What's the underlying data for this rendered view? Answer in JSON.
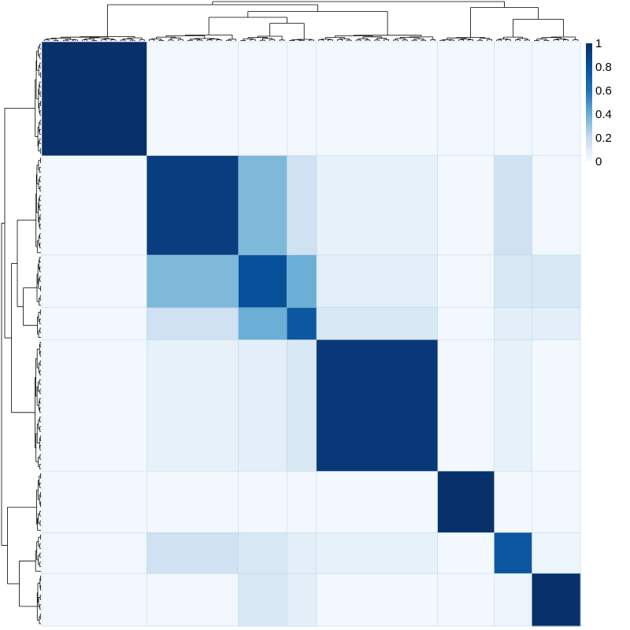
{
  "chart_data": {
    "type": "heatmap",
    "title": "",
    "xlabel": "",
    "ylabel": "",
    "description_of_values": "symmetric co-clustering / consensus matrix, values 0-1",
    "colorbar": {
      "min": 0,
      "max": 1,
      "ticks": [
        0,
        0.2,
        0.4,
        0.6,
        0.8,
        1
      ],
      "tick_labels": [
        "0",
        "0.2",
        "0.4",
        "0.6",
        "0.8",
        "1"
      ],
      "color_low": "#f7fbff",
      "color_high": "#08306b"
    },
    "row_column_order": "hierarchical clustering (dendrograms on top and left)",
    "block_fractions": [
      0.195,
      0.17,
      0.09,
      0.055,
      0.225,
      0.105,
      0.07,
      0.09
    ],
    "block_means": [
      [
        1.0,
        0.02,
        0.02,
        0.02,
        0.02,
        0.02,
        0.03,
        0.02
      ],
      [
        0.02,
        0.95,
        0.45,
        0.2,
        0.08,
        0.02,
        0.2,
        0.03
      ],
      [
        0.02,
        0.45,
        0.88,
        0.5,
        0.1,
        0.02,
        0.15,
        0.15
      ],
      [
        0.02,
        0.2,
        0.5,
        0.85,
        0.15,
        0.02,
        0.1,
        0.1
      ],
      [
        0.02,
        0.08,
        0.1,
        0.15,
        0.97,
        0.02,
        0.08,
        0.02
      ],
      [
        0.02,
        0.02,
        0.02,
        0.02,
        0.02,
        1.0,
        0.02,
        0.02
      ],
      [
        0.03,
        0.2,
        0.15,
        0.1,
        0.08,
        0.02,
        0.85,
        0.05
      ],
      [
        0.02,
        0.03,
        0.15,
        0.1,
        0.02,
        0.02,
        0.05,
        1.0
      ]
    ]
  }
}
